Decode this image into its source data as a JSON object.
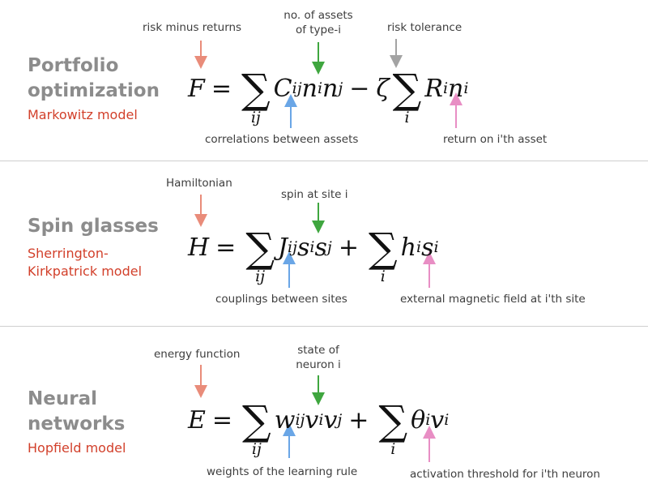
{
  "colors": {
    "orange": "#e98c7a",
    "green": "#3fa63f",
    "gray": "#a3a3a3",
    "blue": "#6aa6e6",
    "pink": "#e88ec4",
    "red": "#d2402b"
  },
  "panels": [
    {
      "title_line1": "Portfolio",
      "title_line2": "optimization",
      "subtitle_line1": "Markowitz model",
      "subtitle_line2": "",
      "eq": {
        "lhs": "F",
        "eq": "=",
        "sum1_index": "ij",
        "coef": "C",
        "coef_sub": "ij",
        "v1": "n",
        "v1_sub": "i",
        "v2": "n",
        "v2_sub": "j",
        "op": "−",
        "mult": "ζ",
        "sum2_index": "i",
        "field": "R",
        "field_sub": "i",
        "v3": "n",
        "v3_sub": "i"
      },
      "anno_top_left": "risk minus returns",
      "anno_top_mid_1": "no. of assets",
      "anno_top_mid_2": "of type-i",
      "anno_top_right": "risk tolerance",
      "anno_bottom_left": "correlations between assets",
      "anno_bottom_right": "return on i'th asset"
    },
    {
      "title_line1": "Spin glasses",
      "title_line2": "",
      "subtitle_line1": "Sherrington-",
      "subtitle_line2": "Kirkpatrick model",
      "eq": {
        "lhs": "H",
        "eq": "=",
        "sum1_index": "ij",
        "coef": "J",
        "coef_sub": "ij",
        "v1": "s",
        "v1_sub": "i",
        "v2": "s",
        "v2_sub": "j",
        "op": "+",
        "sum2_index": "i",
        "field": "h",
        "field_sub": "i",
        "v3": "s",
        "v3_sub": "i"
      },
      "anno_top_left": "Hamiltonian",
      "anno_top_mid_1": "spin at site i",
      "anno_top_mid_2": "",
      "anno_bottom_left": "couplings between sites",
      "anno_bottom_right": "external magnetic field at i'th site"
    },
    {
      "title_line1": "Neural",
      "title_line2": "networks",
      "subtitle_line1": "Hopfield model",
      "subtitle_line2": "",
      "eq": {
        "lhs": "E",
        "eq": "=",
        "sum1_index": "ij",
        "coef": "w",
        "coef_sub": "ij",
        "v1": "v",
        "v1_sub": "i",
        "v2": "v",
        "v2_sub": "j",
        "op": "+",
        "sum2_index": "i",
        "field": "θ",
        "field_sub": "i",
        "v3": "v",
        "v3_sub": "i"
      },
      "anno_top_left": "energy function",
      "anno_top_mid_1": "state of",
      "anno_top_mid_2": "neuron i",
      "anno_bottom_left": "weights of the learning rule",
      "anno_bottom_right": "activation threshold for i'th neuron"
    }
  ]
}
